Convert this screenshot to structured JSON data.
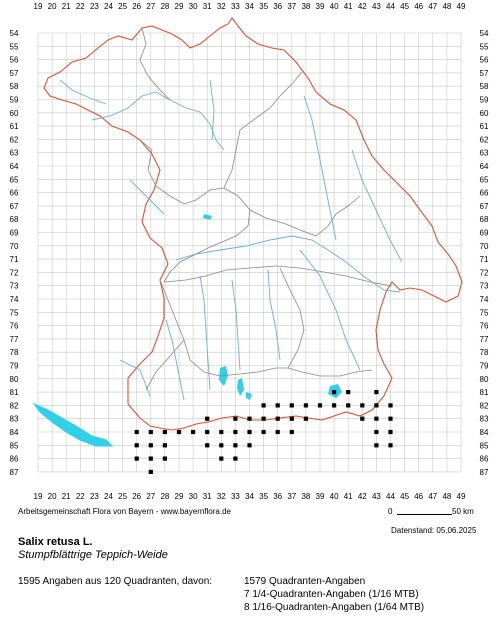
{
  "map": {
    "grid_columns": [
      "19",
      "20",
      "21",
      "22",
      "23",
      "24",
      "25",
      "26",
      "27",
      "28",
      "29",
      "30",
      "31",
      "32",
      "33",
      "34",
      "35",
      "36",
      "37",
      "38",
      "39",
      "40",
      "41",
      "42",
      "43",
      "44",
      "45",
      "46",
      "47",
      "48",
      "49"
    ],
    "grid_rows": [
      "54",
      "55",
      "56",
      "57",
      "58",
      "59",
      "60",
      "61",
      "62",
      "63",
      "64",
      "65",
      "66",
      "67",
      "68",
      "69",
      "70",
      "71",
      "72",
      "73",
      "74",
      "75",
      "76",
      "77",
      "78",
      "79",
      "80",
      "81",
      "82",
      "83",
      "84",
      "85",
      "86",
      "87"
    ],
    "colors": {
      "grid": "#c8c8c8",
      "state_border": "#e05030",
      "district_border": "#888888",
      "rivers": "#6ab0d8",
      "lakes": "#30d0e8",
      "occurrence": "#000000"
    },
    "occurrence_cells": [
      [
        "26",
        "84"
      ],
      [
        "27",
        "84"
      ],
      [
        "28",
        "84"
      ],
      [
        "29",
        "84"
      ],
      [
        "31",
        "84"
      ],
      [
        "32",
        "84"
      ],
      [
        "33",
        "84"
      ],
      [
        "34",
        "84"
      ],
      [
        "26",
        "85"
      ],
      [
        "27",
        "85"
      ],
      [
        "28",
        "85"
      ],
      [
        "31",
        "85"
      ],
      [
        "32",
        "85"
      ],
      [
        "33",
        "85"
      ],
      [
        "34",
        "85"
      ],
      [
        "26",
        "86"
      ],
      [
        "27",
        "86"
      ],
      [
        "28",
        "86"
      ],
      [
        "32",
        "86"
      ],
      [
        "33",
        "86"
      ],
      [
        "27",
        "87"
      ],
      [
        "31",
        "83"
      ],
      [
        "33",
        "83"
      ],
      [
        "34",
        "83"
      ],
      [
        "35",
        "83"
      ],
      [
        "36",
        "83"
      ],
      [
        "37",
        "83"
      ],
      [
        "38",
        "83"
      ],
      [
        "35",
        "82"
      ],
      [
        "36",
        "82"
      ],
      [
        "37",
        "82"
      ],
      [
        "38",
        "82"
      ],
      [
        "39",
        "82"
      ],
      [
        "40",
        "82"
      ],
      [
        "41",
        "82"
      ],
      [
        "40",
        "81"
      ],
      [
        "41",
        "81"
      ],
      [
        "43",
        "81"
      ],
      [
        "42",
        "82"
      ],
      [
        "43",
        "82"
      ],
      [
        "44",
        "82"
      ],
      [
        "42",
        "83"
      ],
      [
        "43",
        "83"
      ],
      [
        "44",
        "83"
      ],
      [
        "43",
        "84"
      ],
      [
        "44",
        "84"
      ],
      [
        "43",
        "85"
      ],
      [
        "44",
        "85"
      ],
      [
        "35",
        "84"
      ],
      [
        "36",
        "84"
      ],
      [
        "37",
        "84"
      ],
      [
        "30",
        "84"
      ]
    ]
  },
  "credit": "Arbeitsgemeinschaft Flora von Bayern - www.bayernflora.de",
  "scale": {
    "zero": "0",
    "label": "50 km"
  },
  "date": "Datenstand: 05.06.2025",
  "species": {
    "latin": "Salix retusa L.",
    "common": "Stumpfblättrige Teppich-Weide"
  },
  "stats": {
    "summary": "1595 Angaben aus 120 Quadranten, davon:",
    "lines": [
      "1579 Quadranten-Angaben",
      "7 1/4-Quadranten-Angaben (1/16 MTB)",
      "8 1/16-Quadranten-Angaben (1/64 MTB)"
    ]
  }
}
